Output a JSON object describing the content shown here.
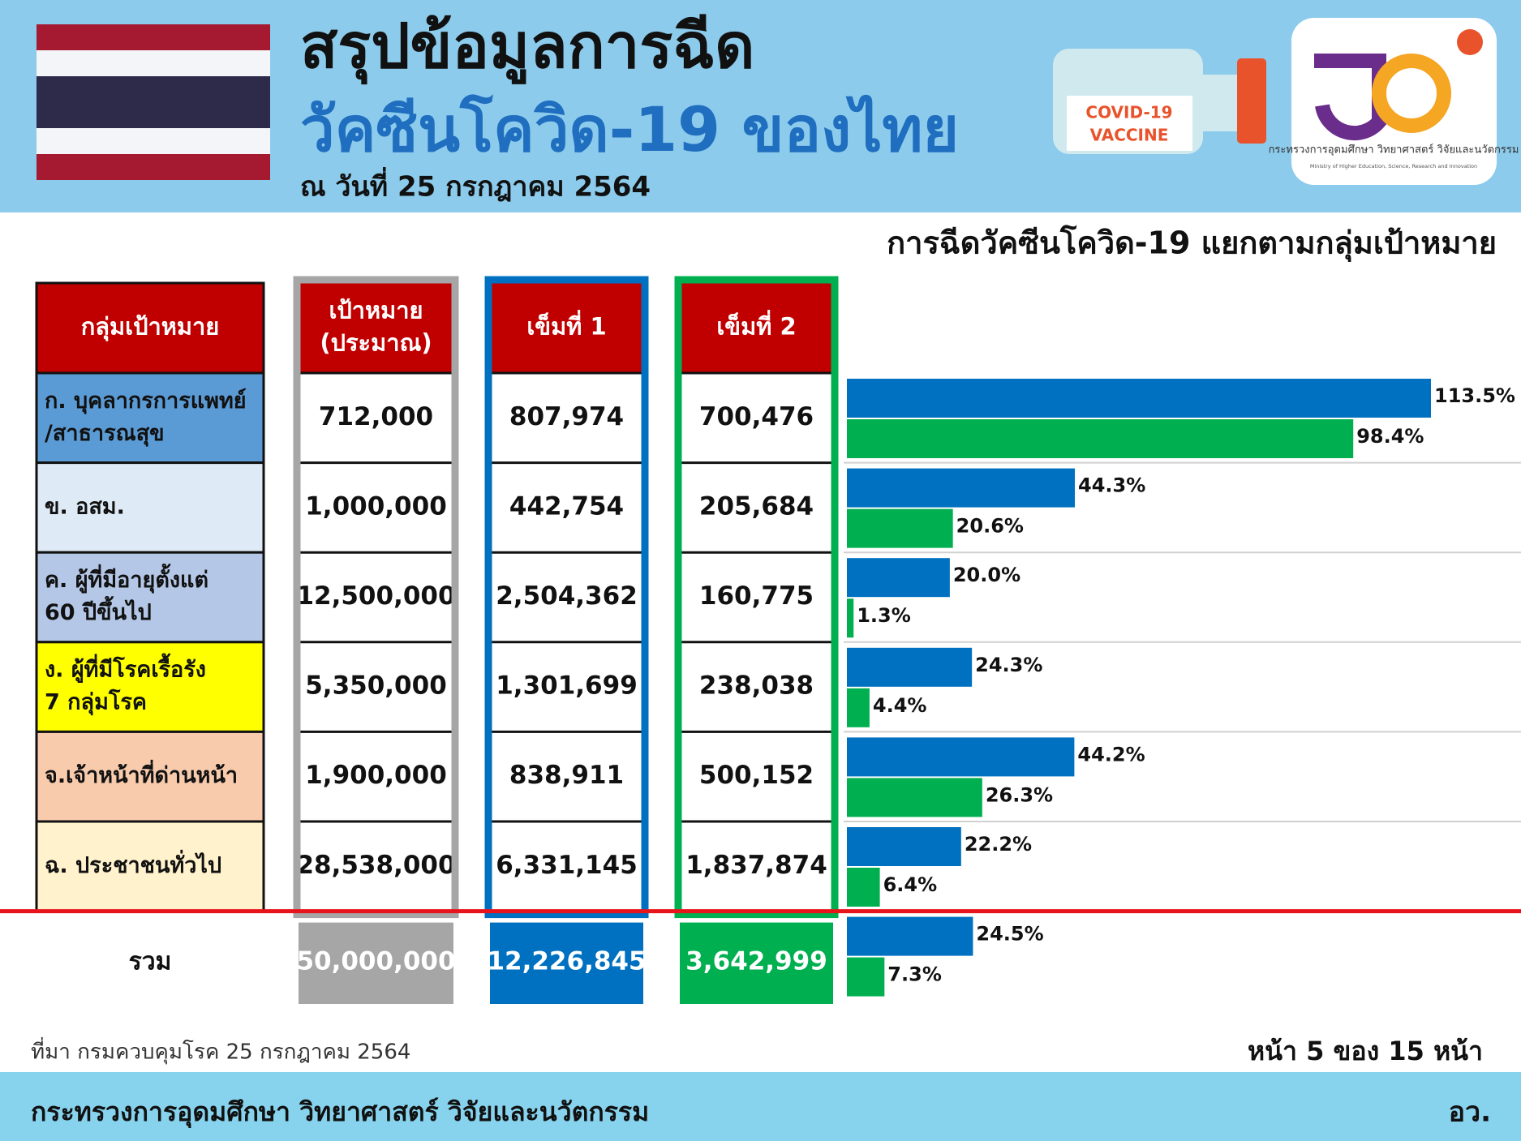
{
  "header": {
    "title": "สรุปข้อมูลการฉีด",
    "subtitle": "วัคซีนโควิด-19 ของไทย",
    "date": "ณ วันที่ 25 กรกฎาคม 2564"
  },
  "vaccine_label": [
    "COVID-19",
    "VACCINE"
  ],
  "logo": {
    "name": "กระทรวงการอุดมศึกษา วิทยาศาสตร์ วิจัยและนวัตกรรม",
    "name_en": "Ministry of Higher Education, Science, Research and Innovation"
  },
  "table": {
    "columns": [
      [
        "กลุ่มเป้าหมาย"
      ],
      [
        "เป้าหมาย",
        "(ประมาณ)"
      ],
      [
        "เข็มที่ 1"
      ],
      [
        "เข็มที่ 2"
      ]
    ],
    "column_colors": [
      "#a6a6a6",
      "#0070c0",
      "#00b050"
    ],
    "rows": [
      {
        "group": [
          "ก. บุคลากรการแพทย์",
          "/สาธารณสุข"
        ],
        "color": "#5b9bd5",
        "cells": [
          "712,000",
          "807,974",
          "700,476"
        ]
      },
      {
        "group": [
          "ข. อสม."
        ],
        "color": "#deebf7",
        "cells": [
          "1,000,000",
          "442,754",
          "205,684"
        ]
      },
      {
        "group": [
          "ค. ผู้ที่มีอายุตั้งแต่",
          "60 ปีขึ้นไป"
        ],
        "color": "#b4c7e7",
        "cells": [
          "12,500,000",
          "2,504,362",
          "160,775"
        ]
      },
      {
        "group": [
          "ง. ผู้ที่มีโรคเรื้อรัง",
          "7 กลุ่มโรค"
        ],
        "color": "#ffff00",
        "cells": [
          "5,350,000",
          "1,301,699",
          "238,038"
        ]
      },
      {
        "group": [
          "จ.เจ้าหน้าที่ด่านหน้า"
        ],
        "color": "#f8cbad",
        "cells": [
          "1,900,000",
          "838,911",
          "500,152"
        ]
      },
      {
        "group": [
          "ฉ. ประชาชนทั่วไป"
        ],
        "color": "#fff2cc",
        "cells": [
          "28,538,000",
          "6,331,145",
          "1,837,874"
        ]
      }
    ],
    "total": {
      "label": "รวม",
      "cells": [
        "50,000,000",
        "12,226,845",
        "3,642,999"
      ]
    }
  },
  "chart_data": {
    "type": "bar",
    "orientation": "horizontal",
    "title": "การฉีดวัคซีนโควิด-19 แยกตามกลุ่มเป้าหมาย",
    "series": [
      {
        "color": "#0070c0",
        "values": [
          113.5,
          44.3,
          20.0,
          24.3,
          44.2,
          22.2,
          24.5
        ],
        "value_labels": [
          "113.5%",
          "44.3%",
          "20.0%",
          "24.3%",
          "44.2%",
          "22.2%",
          "24.5%"
        ]
      },
      {
        "color": "#00b050",
        "values": [
          98.4,
          20.6,
          1.3,
          4.4,
          26.3,
          6.4,
          7.3
        ],
        "value_labels": [
          "98.4%",
          "20.6%",
          "1.3%",
          "4.4%",
          "26.3%",
          "6.4%",
          "7.3%"
        ]
      }
    ]
  },
  "source": "ที่มา กรมควบคุมโรค 25 กรกฎาคม 2564",
  "page": "หน้า 5 ของ 15 หน้า",
  "footer": {
    "ministry": "กระทรวงการอุดมศึกษา วิทยาศาสตร์ วิจัยและนวัตกรรม",
    "abbr": "อว."
  }
}
